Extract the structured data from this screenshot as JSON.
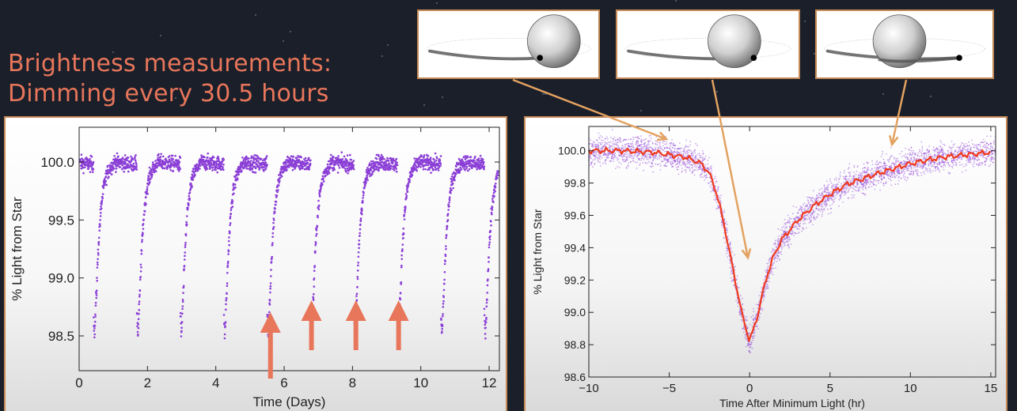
{
  "headline": {
    "line1": "Brightness measurements:",
    "line2": "Dimming every 30.5 hours"
  },
  "colors": {
    "background": "#1b1f2a",
    "headline": "#e8765a",
    "frame": "#c58a55",
    "points": "#8b3fd6",
    "model_line": "#f03a1e",
    "arrow_up": "#e8765a",
    "pointer": "#e3a260"
  },
  "thumbnails": [
    {
      "planet_position": "left of star, approaching transit"
    },
    {
      "planet_position": "mid transit"
    },
    {
      "planet_position": "egress, right of star"
    }
  ],
  "chart_data": [
    {
      "type": "scatter",
      "title": "",
      "xlabel": "Time (Days)",
      "ylabel": "% Light from Star",
      "xlim": [
        0,
        12.3
      ],
      "ylim": [
        98.2,
        100.3
      ],
      "xticks": [
        0,
        2,
        4,
        6,
        8,
        10,
        12
      ],
      "yticks": [
        98.5,
        99.0,
        99.5,
        100.0
      ],
      "xtick_labels": [
        "0",
        "2",
        "4",
        "6",
        "8",
        "10",
        "12"
      ],
      "ytick_labels": [
        "98.5",
        "99.0",
        "99.5",
        "100.0"
      ],
      "grid": false,
      "period_days": 1.271,
      "transit_times": [
        0.45,
        1.72,
        2.99,
        4.26,
        5.53,
        6.8,
        8.07,
        9.34,
        10.61,
        11.88
      ],
      "baseline": 100.0,
      "minimum_light": 98.5,
      "highlighted_transits": [
        5.6,
        6.8,
        8.1,
        9.35
      ]
    },
    {
      "type": "line",
      "title": "",
      "xlabel": "Time After Minimum Light (hr)",
      "ylabel": "% Light from Star",
      "xlim": [
        -10,
        15.3
      ],
      "ylim": [
        98.6,
        100.15
      ],
      "xticks": [
        -10,
        -5,
        0,
        5,
        10,
        15
      ],
      "yticks": [
        98.6,
        98.8,
        99.0,
        99.2,
        99.4,
        99.6,
        99.8,
        100.0
      ],
      "xtick_labels": [
        "−10",
        "−5",
        "0",
        "5",
        "10",
        "15"
      ],
      "ytick_labels": [
        "98.6",
        "98.8",
        "99.0",
        "99.2",
        "99.4",
        "99.6",
        "99.8",
        "100.0"
      ],
      "grid": false,
      "series": [
        {
          "role": "model",
          "x": [
            -10,
            -8,
            -6,
            -4,
            -3,
            -2.5,
            -2,
            -1.5,
            -1,
            -0.5,
            0,
            0.5,
            1,
            1.5,
            2,
            3,
            4,
            5,
            6,
            8,
            10,
            12,
            14,
            15
          ],
          "y": [
            100.0,
            100.0,
            99.99,
            99.96,
            99.92,
            99.86,
            99.72,
            99.5,
            99.25,
            99.0,
            98.82,
            98.98,
            99.2,
            99.35,
            99.45,
            99.57,
            99.66,
            99.73,
            99.79,
            99.86,
            99.92,
            99.96,
            99.98,
            99.99
          ]
        }
      ]
    }
  ]
}
